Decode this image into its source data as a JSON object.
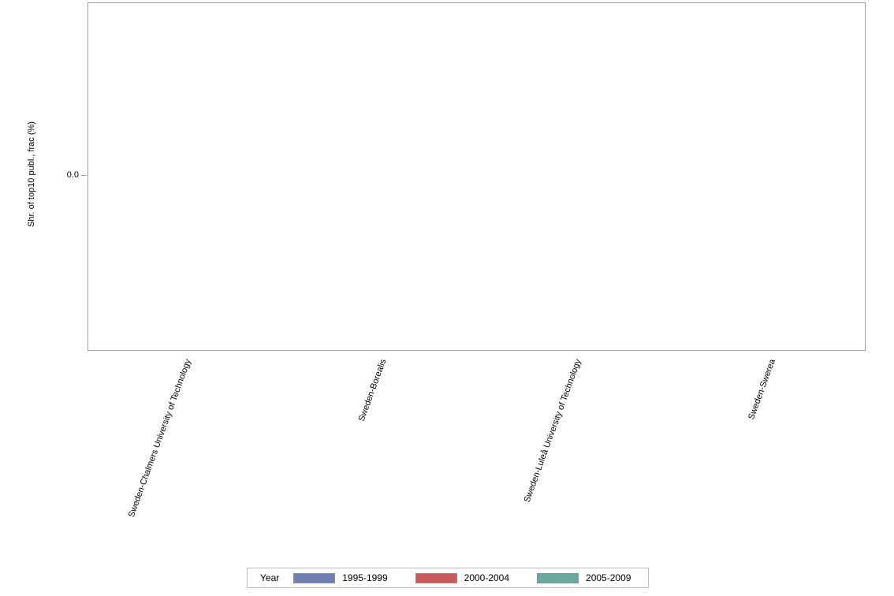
{
  "axes": {
    "ylabel": "Shr. of top10 publ., frac (%)",
    "yticks": [
      "0.0"
    ],
    "xticklabels": [
      "Sweden-Chalmers University of Technology",
      "Sweden-Borealis",
      "Sweden-Luleå University of Technology",
      "Sweden-Swerea"
    ]
  },
  "legend": {
    "title": "Year",
    "items": [
      {
        "label": "1995-1999",
        "color": "#7080B4"
      },
      {
        "label": "2000-2004",
        "color": "#C95B5C"
      },
      {
        "label": "2005-2009",
        "color": "#6AA8A0"
      }
    ]
  },
  "colors": {
    "plot_border": "#9AA0A5",
    "legend_border": "#BBBBBB",
    "swatch_border": "#8A9094",
    "tick_color": "#9AA0A5",
    "text": "#000000",
    "background": "#FFFFFF"
  },
  "chart_data": {
    "type": "bar",
    "title": "",
    "xlabel": "",
    "ylabel": "Shr. of top10 publ., frac (%)",
    "categories": [
      "Sweden-Chalmers University of Technology",
      "Sweden-Borealis",
      "Sweden-Luleå University of Technology",
      "Sweden-Swerea"
    ],
    "series": [
      {
        "name": "1995-1999",
        "color": "#7080B4",
        "values": [
          0,
          0,
          0,
          0
        ]
      },
      {
        "name": "2000-2004",
        "color": "#C95B5C",
        "values": [
          0,
          0,
          0,
          0
        ]
      },
      {
        "name": "2005-2009",
        "color": "#6AA8A0",
        "values": [
          0,
          0,
          0,
          0
        ]
      }
    ],
    "yticks": [
      "0.0"
    ],
    "grid": false,
    "legend_position": "bottom",
    "legend_title": "Year",
    "note": "Plot area is empty: no bars are rendered; only the 0.0 tick is shown on the y-axis."
  }
}
